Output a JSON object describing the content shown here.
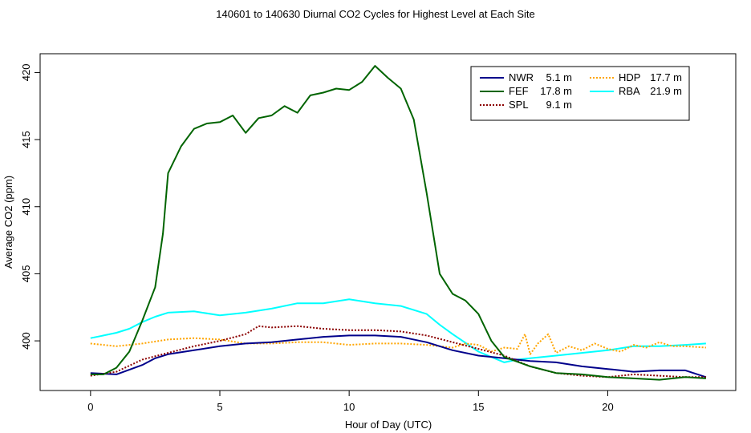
{
  "chart_data": {
    "type": "line",
    "title": "140601  to  140630 Diurnal CO2 Cycles for Highest Level at Each Site",
    "xlabel": "Hour of Day (UTC)",
    "ylabel": "Average CO2 (ppm)",
    "xlim": [
      -1.95,
      24.95
    ],
    "ylim": [
      396.3,
      421.4
    ],
    "xticks": [
      0,
      5,
      10,
      15,
      20
    ],
    "yticks": [
      400,
      405,
      410,
      415,
      420
    ],
    "legend_position": "top-right",
    "series": [
      {
        "name": "NWR",
        "height": "5.1 m",
        "color": "#00008b",
        "dash": "",
        "x": [
          0,
          1,
          2,
          2.5,
          3,
          4,
          5,
          6,
          7,
          8,
          9,
          10,
          11,
          12,
          13,
          14,
          15,
          16,
          17,
          18,
          19,
          20,
          21,
          22,
          23,
          23.8
        ],
        "y": [
          397.6,
          397.5,
          398.2,
          398.7,
          399.0,
          399.3,
          399.6,
          399.8,
          399.9,
          400.1,
          400.3,
          400.4,
          400.4,
          400.3,
          399.9,
          399.3,
          398.9,
          398.7,
          398.5,
          398.4,
          398.1,
          397.9,
          397.7,
          397.8,
          397.8,
          397.3
        ]
      },
      {
        "name": "FEF",
        "height": "17.8 m",
        "color": "#006400",
        "dash": "",
        "x": [
          0,
          0.5,
          1,
          1.5,
          2,
          2.5,
          2.8,
          3,
          3.5,
          4,
          4.5,
          5,
          5.5,
          6,
          6.5,
          7,
          7.5,
          8,
          8.5,
          9,
          9.5,
          10,
          10.5,
          11,
          11.5,
          12,
          12.5,
          13,
          13.5,
          14,
          14.5,
          15,
          15.5,
          16,
          17,
          18,
          19,
          20,
          21,
          22,
          23,
          23.8
        ],
        "y": [
          397.5,
          397.5,
          398.0,
          399.2,
          401.5,
          404.0,
          408.0,
          412.5,
          414.5,
          415.8,
          416.2,
          416.3,
          416.8,
          415.5,
          416.6,
          416.8,
          417.5,
          417.0,
          418.3,
          418.5,
          418.8,
          418.7,
          419.3,
          420.5,
          419.6,
          418.8,
          416.5,
          411.0,
          405.0,
          403.5,
          403.0,
          402.0,
          400.0,
          398.8,
          398.1,
          397.6,
          397.5,
          397.3,
          397.2,
          397.1,
          397.3,
          397.2
        ]
      },
      {
        "name": "SPL",
        "height": "9.1 m",
        "color": "#8b0000",
        "dash": "2,2",
        "x": [
          0,
          1,
          2,
          3,
          4,
          5,
          6,
          6.5,
          7,
          8,
          9,
          10,
          11,
          12,
          13,
          14,
          15,
          16,
          17,
          18,
          19,
          20,
          21,
          22,
          23,
          23.8
        ],
        "y": [
          397.4,
          397.7,
          398.6,
          399.1,
          399.6,
          400.0,
          400.5,
          401.1,
          401.0,
          401.1,
          400.9,
          400.8,
          400.8,
          400.7,
          400.4,
          399.9,
          399.4,
          398.9,
          398.1,
          397.6,
          397.4,
          397.3,
          397.5,
          397.4,
          397.3,
          397.3
        ]
      },
      {
        "name": "HDP",
        "height": "17.7 m",
        "color": "#ffa500",
        "dash": "2,2",
        "x": [
          0,
          1,
          2,
          3,
          4,
          5,
          6,
          7,
          8,
          9,
          10,
          11,
          12,
          13,
          14,
          14.5,
          15,
          15.5,
          16,
          16.5,
          16.8,
          17,
          17.3,
          17.7,
          18,
          18.5,
          19,
          19.5,
          20,
          20.5,
          21,
          21.5,
          22,
          22.5,
          23,
          23.8
        ],
        "y": [
          399.8,
          399.6,
          399.8,
          400.1,
          400.2,
          400.1,
          399.8,
          399.8,
          399.9,
          399.9,
          399.7,
          399.8,
          399.8,
          399.7,
          399.5,
          399.8,
          399.7,
          399.2,
          399.5,
          399.4,
          400.5,
          399.0,
          399.8,
          400.5,
          399.1,
          399.6,
          399.3,
          399.8,
          399.4,
          399.2,
          399.7,
          399.5,
          399.9,
          399.6,
          399.6,
          399.5
        ]
      },
      {
        "name": "RBA",
        "height": "21.9 m",
        "color": "#00ffff",
        "dash": "",
        "x": [
          0,
          0.5,
          1,
          1.5,
          2,
          2.5,
          3,
          4,
          5,
          6,
          7,
          8,
          9,
          10,
          11,
          12,
          13,
          13.5,
          14,
          15,
          16,
          16.5,
          17,
          18,
          19,
          20,
          21,
          22,
          23,
          23.8
        ],
        "y": [
          400.2,
          400.4,
          400.6,
          400.9,
          401.4,
          401.8,
          402.1,
          402.2,
          401.9,
          402.1,
          402.4,
          402.8,
          402.8,
          403.1,
          402.8,
          402.6,
          402.0,
          401.2,
          400.5,
          399.2,
          398.4,
          398.6,
          398.7,
          398.9,
          399.1,
          399.3,
          399.6,
          399.6,
          399.7,
          399.8
        ]
      }
    ]
  }
}
